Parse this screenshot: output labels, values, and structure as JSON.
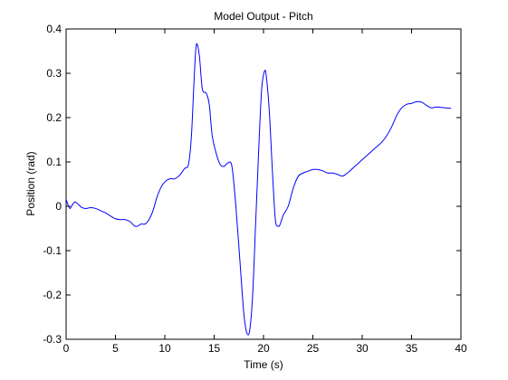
{
  "chart_data": {
    "type": "line",
    "title": "Model Output - Pitch",
    "xlabel": "Time (s)",
    "ylabel": "Position (rad)",
    "xlim": [
      0,
      40
    ],
    "ylim": [
      -0.3,
      0.4
    ],
    "xticks": [
      0,
      5,
      10,
      15,
      20,
      25,
      30,
      35,
      40
    ],
    "yticks": [
      -0.3,
      -0.2,
      -0.1,
      0,
      0.1,
      0.2,
      0.3,
      0.4
    ],
    "xtick_labels": [
      "0",
      "5",
      "10",
      "15",
      "20",
      "25",
      "30",
      "35",
      "40"
    ],
    "ytick_labels": [
      "-0.3",
      "-0.2",
      "-0.1",
      "0",
      "0.1",
      "0.2",
      "0.3",
      "0.4"
    ],
    "grid": false,
    "series": [
      {
        "color": "#0000ff",
        "x": [
          0,
          0.2,
          0.4,
          0.6,
          0.9,
          1.2,
          1.6,
          2.0,
          2.5,
          3.0,
          3.5,
          4.0,
          4.5,
          5.0,
          5.5,
          6.0,
          6.5,
          6.9,
          7.2,
          7.6,
          8.0,
          8.4,
          8.8,
          9.2,
          9.6,
          10.0,
          10.5,
          11.0,
          11.5,
          12.0,
          12.4,
          12.7,
          13.0,
          13.2,
          13.5,
          13.8,
          14.2,
          14.5,
          14.8,
          15.2,
          15.6,
          16.0,
          16.4,
          16.8,
          17.2,
          17.6,
          18.0,
          18.3,
          18.6,
          18.9,
          19.2,
          19.5,
          19.8,
          20.1,
          20.3,
          20.6,
          20.9,
          21.2,
          21.5,
          21.7,
          22.0,
          22.5,
          23.0,
          23.5,
          24.0,
          24.5,
          25.0,
          25.5,
          26.0,
          26.5,
          27.0,
          27.5,
          28.0,
          28.5,
          29.0,
          29.5,
          30.0,
          30.5,
          31.0,
          31.5,
          32.0,
          32.5,
          33.0,
          33.5,
          34.0,
          34.5,
          35.0,
          35.5,
          36.0,
          36.5,
          37.0,
          37.5,
          38.0,
          38.5,
          39.0
        ],
        "y": [
          0.016,
          0.003,
          -0.005,
          0.002,
          0.01,
          0.005,
          -0.003,
          -0.005,
          -0.003,
          -0.005,
          -0.01,
          -0.015,
          -0.022,
          -0.028,
          -0.03,
          -0.03,
          -0.035,
          -0.044,
          -0.045,
          -0.04,
          -0.04,
          -0.03,
          -0.01,
          0.02,
          0.042,
          0.055,
          0.062,
          0.062,
          0.07,
          0.085,
          0.095,
          0.16,
          0.3,
          0.365,
          0.34,
          0.265,
          0.255,
          0.23,
          0.16,
          0.12,
          0.095,
          0.09,
          0.098,
          0.09,
          0.0,
          -0.12,
          -0.24,
          -0.285,
          -0.28,
          -0.2,
          -0.04,
          0.12,
          0.26,
          0.305,
          0.29,
          0.21,
          0.08,
          -0.03,
          -0.045,
          -0.04,
          -0.02,
          0.0,
          0.04,
          0.067,
          0.075,
          0.079,
          0.083,
          0.083,
          0.08,
          0.075,
          0.075,
          0.072,
          0.068,
          0.075,
          0.085,
          0.095,
          0.105,
          0.115,
          0.125,
          0.135,
          0.145,
          0.16,
          0.18,
          0.205,
          0.222,
          0.23,
          0.232,
          0.236,
          0.235,
          0.228,
          0.222,
          0.224,
          0.223,
          0.222,
          0.221
        ]
      }
    ]
  }
}
